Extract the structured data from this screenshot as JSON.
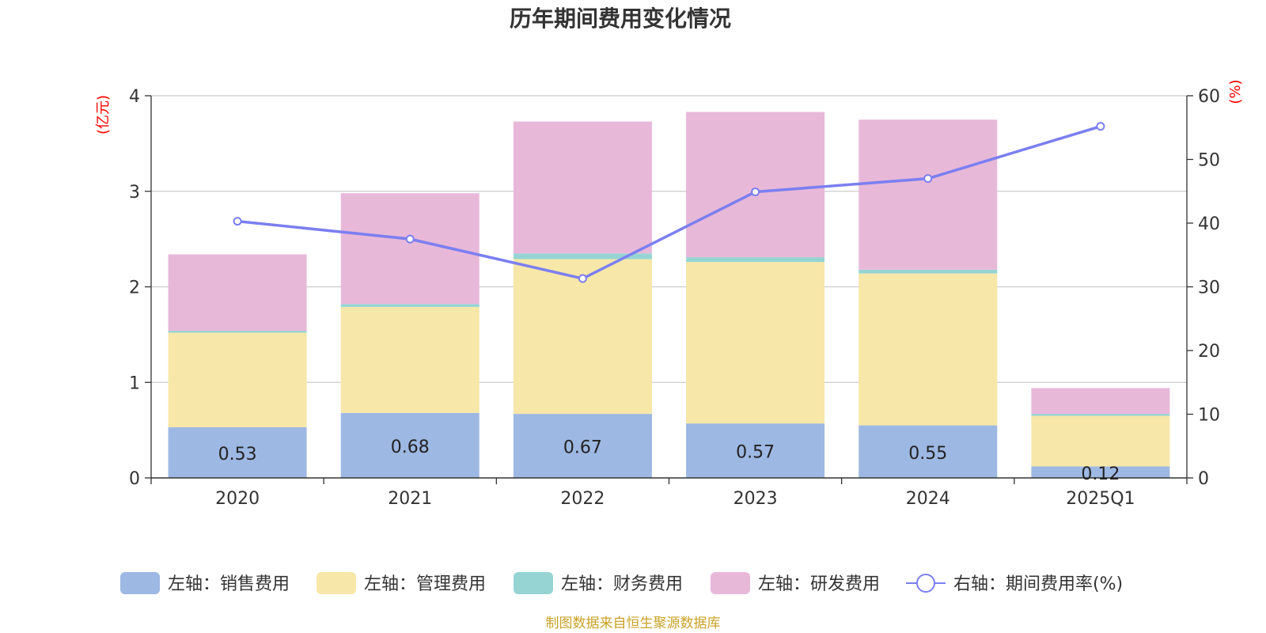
{
  "chart_data": {
    "type": "bar",
    "title": "历年期间费用变化情况",
    "categories": [
      "2020",
      "2021",
      "2022",
      "2023",
      "2024",
      "2025Q1"
    ],
    "left_axis": {
      "unit_label": "(亿元)",
      "ylim": [
        0,
        4
      ],
      "ticks": [
        "0",
        "1",
        "2",
        "3",
        "4"
      ]
    },
    "right_axis": {
      "unit_label": "(%)",
      "ylim": [
        0,
        60
      ],
      "ticks": [
        "0",
        "10",
        "20",
        "30",
        "40",
        "50",
        "60"
      ]
    },
    "stacked": true,
    "grid": true,
    "legend_position": "bottom",
    "series": [
      {
        "name": "左轴：销售费用",
        "type": "bar",
        "axis": "left",
        "color": "#9db8e3",
        "values": [
          0.53,
          0.68,
          0.67,
          0.57,
          0.55,
          0.12
        ],
        "labels": [
          "0.53",
          "0.68",
          "0.67",
          "0.57",
          "0.55",
          "0.12"
        ]
      },
      {
        "name": "左轴：管理费用",
        "type": "bar",
        "axis": "left",
        "color": "#f7e7a8",
        "values": [
          0.99,
          1.11,
          1.62,
          1.69,
          1.59,
          0.53
        ]
      },
      {
        "name": "左轴：财务费用",
        "type": "bar",
        "axis": "left",
        "color": "#96d4d4",
        "values": [
          0.02,
          0.03,
          0.06,
          0.05,
          0.04,
          0.02
        ]
      },
      {
        "name": "左轴：研发费用",
        "type": "bar",
        "axis": "left",
        "color": "#e8b8d9",
        "values": [
          0.8,
          1.16,
          1.38,
          1.52,
          1.57,
          0.27
        ]
      },
      {
        "name": "右轴：期间费用率(%)",
        "type": "line",
        "axis": "right",
        "color": "#7b7ff0",
        "values": [
          40.3,
          37.5,
          31.3,
          44.9,
          47.0,
          55.2
        ]
      }
    ],
    "source": "制图数据来自恒生聚源数据库"
  }
}
